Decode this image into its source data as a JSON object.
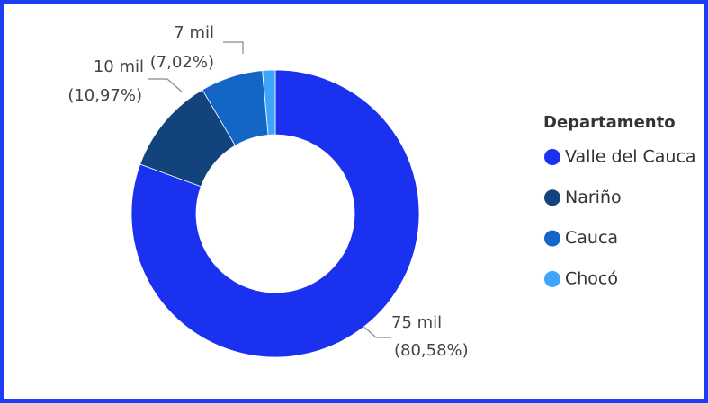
{
  "chart_data": {
    "type": "donut",
    "legend_title": "Departamento",
    "categories": [
      "Valle del Cauca",
      "Nariño",
      "Cauca",
      "Chocó"
    ],
    "values": [
      80.58,
      10.97,
      7.02,
      1.43
    ],
    "value_labels": [
      "(80,58%)",
      "(10,97%)",
      "(7,02%)",
      null
    ],
    "amount_labels": [
      "75 mil",
      "10 mil",
      "7 mil",
      null
    ],
    "colors": [
      "#1a31ef",
      "#12437c",
      "#1466c6",
      "#3ea5fb"
    ],
    "legend": "right"
  }
}
